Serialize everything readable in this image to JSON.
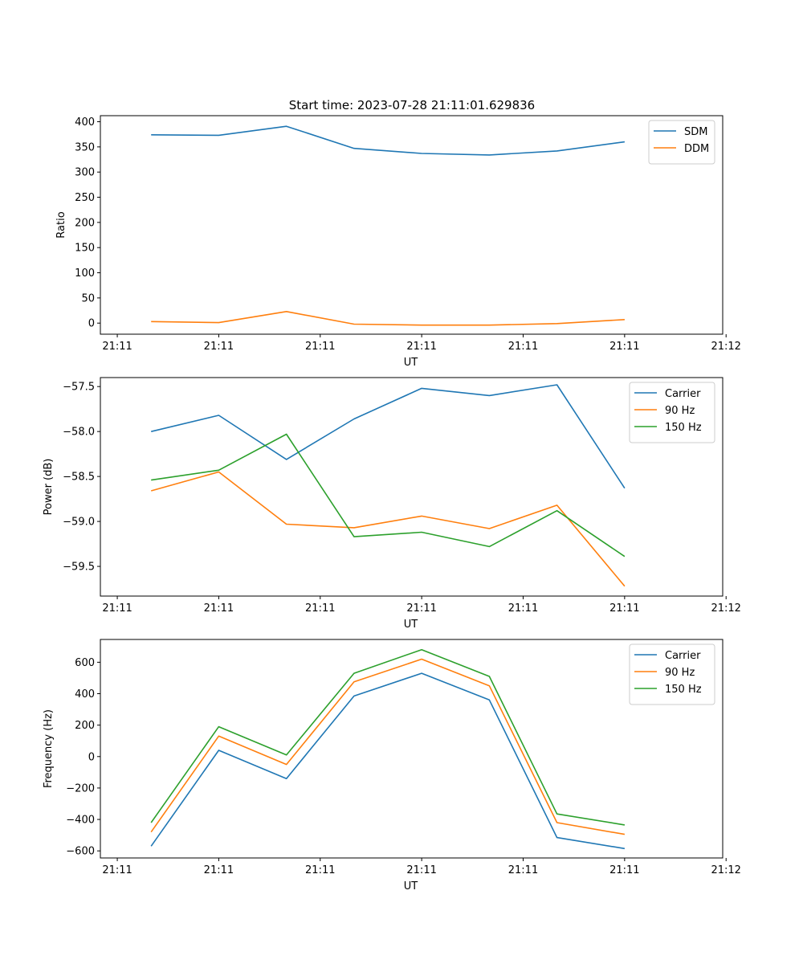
{
  "figure_title": "Start time: 2023-07-28 21:11:01.629836",
  "colors": {
    "blue": "#1f77b4",
    "orange": "#ff7f0e",
    "green": "#2ca02c"
  },
  "chart_data": [
    {
      "type": "line",
      "ylabel": "Ratio",
      "xlabel": "UT",
      "x": [
        1,
        2,
        3,
        4,
        5,
        6,
        7,
        8
      ],
      "xlim": [
        0.25,
        9.45
      ],
      "xticks": [
        0.5,
        2,
        3.5,
        5,
        6.5,
        8,
        9.5
      ],
      "xtick_labels": [
        "21:11",
        "21:11",
        "21:11",
        "21:11",
        "21:11",
        "21:11",
        "21:12"
      ],
      "ylim": [
        -22,
        412
      ],
      "yticks": [
        0,
        50,
        100,
        150,
        200,
        250,
        300,
        350,
        400
      ],
      "ytick_labels": [
        "0",
        "50",
        "100",
        "150",
        "200",
        "250",
        "300",
        "350",
        "400"
      ],
      "legend_position": "top-right",
      "series": [
        {
          "name": "SDM",
          "color": "#1f77b4",
          "values": [
            374,
            373,
            391,
            347,
            337,
            334,
            342,
            360
          ]
        },
        {
          "name": "DDM",
          "color": "#ff7f0e",
          "values": [
            3,
            1,
            23,
            -2,
            -4,
            -4,
            -1,
            7
          ]
        }
      ]
    },
    {
      "type": "line",
      "ylabel": "Power (dB)",
      "xlabel": "UT",
      "x": [
        1,
        2,
        3,
        4,
        5,
        6,
        7,
        8
      ],
      "xlim": [
        0.25,
        9.45
      ],
      "xticks": [
        0.5,
        2,
        3.5,
        5,
        6.5,
        8,
        9.5
      ],
      "xtick_labels": [
        "21:11",
        "21:11",
        "21:11",
        "21:11",
        "21:11",
        "21:11",
        "21:12"
      ],
      "ylim": [
        -59.83,
        -57.4
      ],
      "yticks": [
        -57.5,
        -58.0,
        -58.5,
        -59.0,
        -59.5
      ],
      "ytick_labels": [
        "−57.5",
        "−58.0",
        "−58.5",
        "−59.0",
        "−59.5"
      ],
      "legend_position": "top-right",
      "series": [
        {
          "name": "Carrier",
          "color": "#1f77b4",
          "values": [
            -58.0,
            -57.82,
            -58.31,
            -57.86,
            -57.52,
            -57.6,
            -57.48,
            -58.63
          ]
        },
        {
          "name": "90 Hz",
          "color": "#ff7f0e",
          "values": [
            -58.66,
            -58.45,
            -59.03,
            -59.07,
            -58.94,
            -59.08,
            -58.82,
            -59.72
          ]
        },
        {
          "name": "150 Hz",
          "color": "#2ca02c",
          "values": [
            -58.54,
            -58.43,
            -58.03,
            -59.17,
            -59.12,
            -59.28,
            -58.88,
            -59.39
          ]
        }
      ]
    },
    {
      "type": "line",
      "ylabel": "Frequency (Hz)",
      "xlabel": "UT",
      "x": [
        1,
        2,
        3,
        4,
        5,
        6,
        7,
        8
      ],
      "xlim": [
        0.25,
        9.45
      ],
      "xticks": [
        0.5,
        2,
        3.5,
        5,
        6.5,
        8,
        9.5
      ],
      "xtick_labels": [
        "21:11",
        "21:11",
        "21:11",
        "21:11",
        "21:11",
        "21:11",
        "21:12"
      ],
      "ylim": [
        -645,
        745
      ],
      "yticks": [
        -600,
        -400,
        -200,
        0,
        200,
        400,
        600
      ],
      "ytick_labels": [
        "−600",
        "−400",
        "−200",
        "0",
        "200",
        "400",
        "600"
      ],
      "legend_position": "top-right",
      "series": [
        {
          "name": "Carrier",
          "color": "#1f77b4",
          "values": [
            -570,
            40,
            -140,
            385,
            530,
            360,
            -515,
            -585
          ]
        },
        {
          "name": "90 Hz",
          "color": "#ff7f0e",
          "values": [
            -480,
            130,
            -50,
            475,
            620,
            450,
            -420,
            -495
          ]
        },
        {
          "name": "150 Hz",
          "color": "#2ca02c",
          "values": [
            -420,
            190,
            10,
            530,
            680,
            510,
            -365,
            -435
          ]
        }
      ]
    }
  ]
}
